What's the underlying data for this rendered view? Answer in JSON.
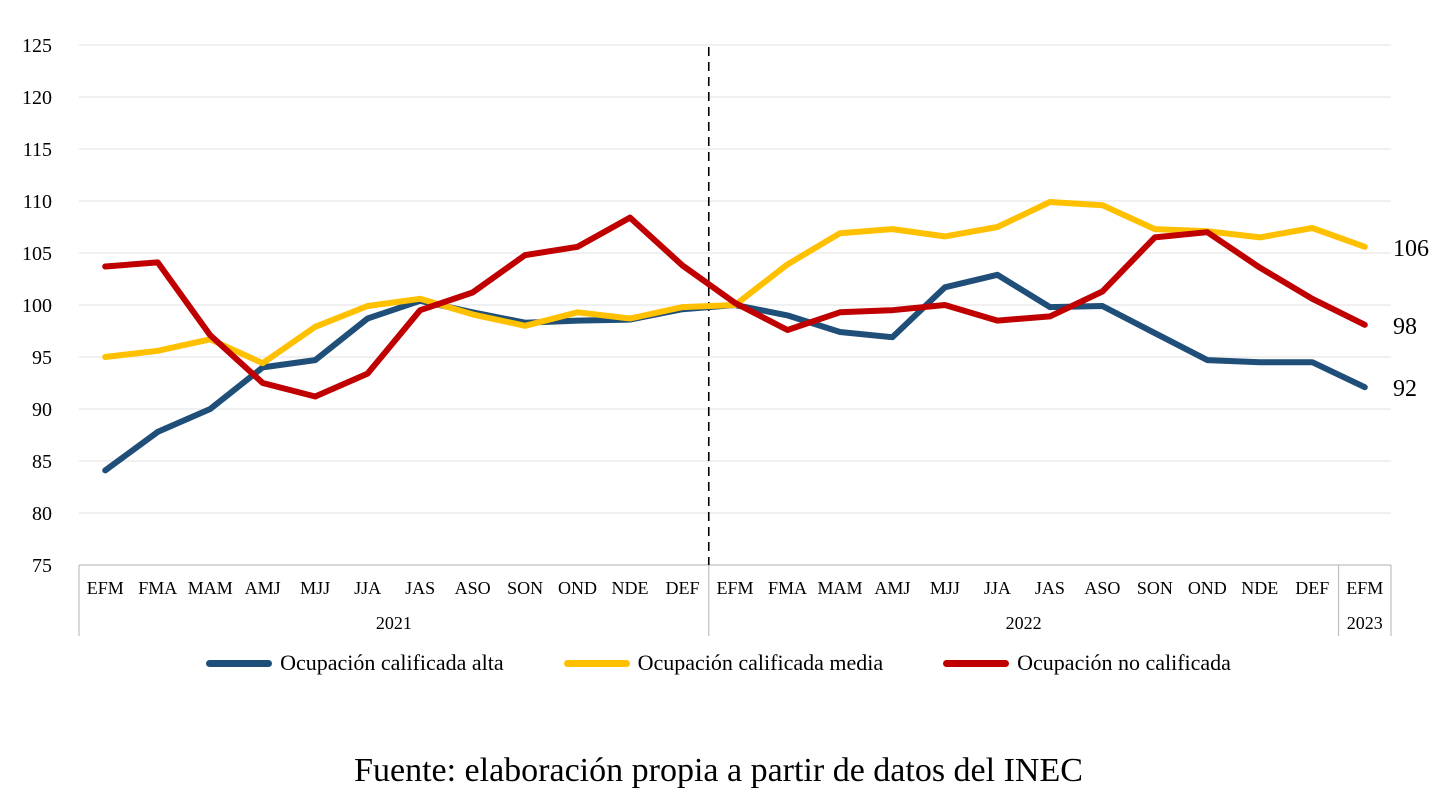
{
  "chart_data": {
    "type": "line",
    "title": "",
    "xlabel": "",
    "ylabel": "",
    "ylim": [
      75,
      125
    ],
    "yticks": [
      75,
      80,
      85,
      90,
      95,
      100,
      105,
      110,
      115,
      120,
      125
    ],
    "grid": "horizontal",
    "legend_position": "bottom",
    "categories": [
      "EFM",
      "FMA",
      "MAM",
      "AMJ",
      "MJJ",
      "JJA",
      "JAS",
      "ASO",
      "SON",
      "OND",
      "NDE",
      "DEF",
      "EFM",
      "FMA",
      "MAM",
      "AMJ",
      "MJJ",
      "JJA",
      "JAS",
      "ASO",
      "SON",
      "OND",
      "NDE",
      "DEF",
      "EFM"
    ],
    "year_groups": [
      {
        "label": "2021",
        "start": 0,
        "end": 11
      },
      {
        "label": "2022",
        "start": 12,
        "end": 23
      },
      {
        "label": "2023",
        "start": 24,
        "end": 24
      }
    ],
    "reference_line_index": 12,
    "series": [
      {
        "name": "Ocupación calificada alta",
        "color": "#1f4e79",
        "values": [
          84.1,
          87.8,
          90.0,
          94.0,
          94.7,
          98.7,
          100.4,
          99.3,
          98.3,
          98.5,
          98.6,
          99.6,
          100.0,
          99.0,
          97.4,
          96.9,
          101.7,
          102.9,
          99.8,
          99.9,
          97.3,
          94.7,
          94.5,
          94.5,
          92.1
        ],
        "end_label": "92"
      },
      {
        "name": "Ocupación calificada media",
        "color": "#ffc000",
        "values": [
          95.0,
          95.6,
          96.7,
          94.4,
          97.9,
          99.9,
          100.6,
          99.1,
          98.0,
          99.3,
          98.7,
          99.8,
          100.0,
          103.9,
          106.9,
          107.3,
          106.6,
          107.5,
          109.9,
          109.6,
          107.3,
          107.1,
          106.5,
          107.4,
          105.6
        ],
        "end_label": "106"
      },
      {
        "name": "Ocupación no calificada",
        "color": "#c00000",
        "values": [
          103.7,
          104.1,
          97.1,
          92.5,
          91.2,
          93.4,
          99.5,
          101.2,
          104.8,
          105.6,
          108.4,
          103.8,
          100.2,
          97.6,
          99.3,
          99.5,
          100.0,
          98.5,
          98.9,
          101.3,
          106.5,
          107.0,
          103.6,
          100.6,
          98.1
        ],
        "end_label": "98"
      }
    ]
  },
  "source": "Fuente: elaboración propia a partir de datos del INEC"
}
